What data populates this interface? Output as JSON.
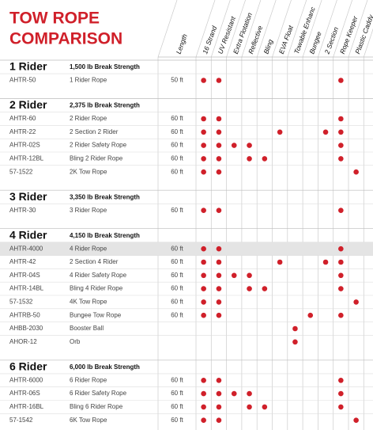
{
  "title_lines": [
    "TOW ROPE",
    "COMPARISON"
  ],
  "columns": [
    "Length",
    "16 Strand",
    "UV Resistant",
    "Extra Flotation",
    "Reflective",
    "Bling",
    "EVA Float",
    "Towable Enhanc",
    "Bungee",
    "2 Section",
    "Rope Keeper",
    "Plastic Caddy"
  ],
  "groups": [
    {
      "title": "1 Rider",
      "strength": "1,500 lb Break Strength",
      "rows": [
        {
          "part": "AHTR-50",
          "description": "1 Rider Rope",
          "length": "50 ft",
          "features": [
            1,
            1,
            0,
            0,
            0,
            0,
            0,
            0,
            0,
            1,
            0
          ]
        }
      ]
    },
    {
      "title": "2 Rider",
      "strength": "2,375 lb Break Strength",
      "rows": [
        {
          "part": "AHTR-60",
          "description": "2 Rider Rope",
          "length": "60 ft",
          "features": [
            1,
            1,
            0,
            0,
            0,
            0,
            0,
            0,
            0,
            1,
            0
          ]
        },
        {
          "part": "AHTR-22",
          "description": "2 Section 2 Rider",
          "length": "60 ft",
          "features": [
            1,
            1,
            0,
            0,
            0,
            1,
            0,
            0,
            1,
            1,
            0
          ]
        },
        {
          "part": "AHTR-02S",
          "description": "2 Rider Safety Rope",
          "length": "60 ft",
          "features": [
            1,
            1,
            1,
            1,
            0,
            0,
            0,
            0,
            0,
            1,
            0
          ]
        },
        {
          "part": "AHTR-12BL",
          "description": "Bling 2 Rider Rope",
          "length": "60 ft",
          "features": [
            1,
            1,
            0,
            1,
            1,
            0,
            0,
            0,
            0,
            1,
            0
          ]
        },
        {
          "part": "57-1522",
          "description": "2K Tow Rope",
          "length": "60 ft",
          "features": [
            1,
            1,
            0,
            0,
            0,
            0,
            0,
            0,
            0,
            0,
            1
          ]
        }
      ]
    },
    {
      "title": "3 Rider",
      "strength": "3,350 lb Break Strength",
      "rows": [
        {
          "part": "AHTR-30",
          "description": "3 Rider Rope",
          "length": "60 ft",
          "features": [
            1,
            1,
            0,
            0,
            0,
            0,
            0,
            0,
            0,
            1,
            0
          ]
        }
      ]
    },
    {
      "title": "4 Rider",
      "strength": "4,150 lb Break Strength",
      "rows": [
        {
          "part": "AHTR-4000",
          "description": "4 Rider Rope",
          "length": "60 ft",
          "features": [
            1,
            1,
            0,
            0,
            0,
            0,
            0,
            0,
            0,
            1,
            0
          ],
          "highlight": true
        },
        {
          "part": "AHTR-42",
          "description": "2 Section 4 Rider",
          "length": "60 ft",
          "features": [
            1,
            1,
            0,
            0,
            0,
            1,
            0,
            0,
            1,
            1,
            0
          ]
        },
        {
          "part": "AHTR-04S",
          "description": "4 Rider Safety Rope",
          "length": "60 ft",
          "features": [
            1,
            1,
            1,
            1,
            0,
            0,
            0,
            0,
            0,
            1,
            0
          ]
        },
        {
          "part": "AHTR-14BL",
          "description": "Bling 4 Rider Rope",
          "length": "60 ft",
          "features": [
            1,
            1,
            0,
            1,
            1,
            0,
            0,
            0,
            0,
            1,
            0
          ]
        },
        {
          "part": "57-1532",
          "description": "4K Tow Rope",
          "length": "60 ft",
          "features": [
            1,
            1,
            0,
            0,
            0,
            0,
            0,
            0,
            0,
            0,
            1
          ]
        },
        {
          "part": "AHTRB-50",
          "description": "Bungee Tow Rope",
          "length": "60 ft",
          "features": [
            1,
            1,
            0,
            0,
            0,
            0,
            0,
            1,
            0,
            1,
            0
          ]
        },
        {
          "part": "AHBB-2030",
          "description": "Booster Ball",
          "length": null,
          "features": [
            0,
            0,
            0,
            0,
            0,
            0,
            1,
            0,
            0,
            0,
            0
          ]
        },
        {
          "part": "AHOR-12",
          "description": "Orb",
          "length": null,
          "features": [
            0,
            0,
            0,
            0,
            0,
            0,
            1,
            0,
            0,
            0,
            0
          ]
        }
      ]
    },
    {
      "title": "6 Rider",
      "strength": "6,000 lb Break Strength",
      "rows": [
        {
          "part": "AHTR-6000",
          "description": "6 Rider Rope",
          "length": "60 ft",
          "features": [
            1,
            1,
            0,
            0,
            0,
            0,
            0,
            0,
            0,
            1,
            0
          ]
        },
        {
          "part": "AHTR-06S",
          "description": "6 Rider Safety Rope",
          "length": "60 ft",
          "features": [
            1,
            1,
            1,
            1,
            0,
            0,
            0,
            0,
            0,
            1,
            0
          ]
        },
        {
          "part": "AHTR-16BL",
          "description": "Bling 6 Rider Rope",
          "length": "60 ft",
          "features": [
            1,
            1,
            0,
            1,
            1,
            0,
            0,
            0,
            0,
            1,
            0
          ]
        },
        {
          "part": "57-1542",
          "description": "6K Tow Rope",
          "length": "60 ft",
          "features": [
            1,
            1,
            0,
            0,
            0,
            0,
            0,
            0,
            0,
            0,
            1
          ]
        }
      ]
    }
  ]
}
